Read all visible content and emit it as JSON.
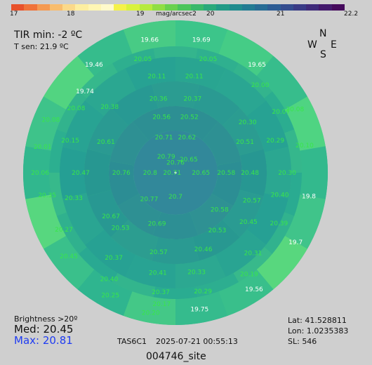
{
  "colorbar": {
    "ticks": [
      "17",
      "18",
      "19",
      "20",
      "21",
      "22.2"
    ],
    "unit": "mag/arcsec2",
    "colors": [
      "#e8522b",
      "#f0733a",
      "#f59a52",
      "#f8bd6e",
      "#fbd98a",
      "#fdeea0",
      "#fff6b4",
      "#fffacb",
      "#f5f24a",
      "#d9f23d",
      "#b6ea3e",
      "#90de44",
      "#6ad14e",
      "#4cc55a",
      "#39b86a",
      "#2aa97a",
      "#219a86",
      "#1f8b8e",
      "#227b93",
      "#276c95",
      "#2d5c94",
      "#334c8f",
      "#393b86",
      "#3f2b7a",
      "#43196c",
      "#450a5c"
    ]
  },
  "tir": {
    "min_label": "TIR min: -2 ºC",
    "tsen_label": "T sen: 21.9 ºC"
  },
  "compass": {
    "n": "N",
    "w": "W",
    "e": "E",
    "s": "S"
  },
  "stats": {
    "brightness_label": "Brightness >20º",
    "med_label": "Med: 20.45",
    "max_label": "Max: 20.81",
    "max_color": "#1f3cf2"
  },
  "device": "TAS6C1",
  "datetime": "2025-07-21   00:55:13",
  "site": "004746_site",
  "location": {
    "lat": "Lat: 41.528811",
    "lon": "Lon: 1.0235383",
    "sl": "SL:  546"
  },
  "sky_labels": [
    {
      "text": "19.66",
      "az": -11,
      "zen": 80
    },
    {
      "text": "19.69",
      "az": 11,
      "zen": 80
    },
    {
      "text": "19.46",
      "az": -37,
      "zen": 80
    },
    {
      "text": "19.65",
      "az": 37,
      "zen": 80
    },
    {
      "text": "19.74",
      "az": -48,
      "zen": 72
    },
    {
      "text": "20.05",
      "az": -16,
      "zen": 70
    },
    {
      "text": "20.05",
      "az": 16,
      "zen": 70
    },
    {
      "text": "20.11",
      "az": -11,
      "zen": 58
    },
    {
      "text": "20.11",
      "az": 11,
      "zen": 58
    },
    {
      "text": "20.00",
      "az": 44,
      "zen": 72
    },
    {
      "text": "20.08",
      "az": 62,
      "zen": 80
    },
    {
      "text": "20.36",
      "az": -13,
      "zen": 45
    },
    {
      "text": "20.37",
      "az": 13,
      "zen": 45
    },
    {
      "text": "20.56",
      "az": -14,
      "zen": 34
    },
    {
      "text": "20.52",
      "az": 14,
      "zen": 34
    },
    {
      "text": "20.71",
      "az": -18,
      "zen": 22
    },
    {
      "text": "20.62",
      "az": 18,
      "zen": 22
    },
    {
      "text": "20.79",
      "az": -30,
      "zen": 11
    },
    {
      "text": "20.65",
      "az": 45,
      "zen": 11
    },
    {
      "text": "20.76",
      "az": 0,
      "zen": 6
    },
    {
      "text": "20.08",
      "az": -67,
      "zen": 80
    },
    {
      "text": "20.08",
      "az": -57,
      "zen": 70
    },
    {
      "text": "20.38",
      "az": -45,
      "zen": 55
    },
    {
      "text": "20.30",
      "az": 55,
      "zen": 52
    },
    {
      "text": "20.07",
      "az": 60,
      "zen": 72
    },
    {
      "text": "20.61",
      "az": -66,
      "zen": 45
    },
    {
      "text": "20.51",
      "az": 66,
      "zen": 45
    },
    {
      "text": "20.29",
      "az": 72,
      "zen": 62
    },
    {
      "text": "20.10",
      "az": 78,
      "zen": 78
    },
    {
      "text": "20.01",
      "az": -79,
      "zen": 80
    },
    {
      "text": "20.15",
      "az": -73,
      "zen": 65
    },
    {
      "text": "20.06",
      "az": -90,
      "zen": 80
    },
    {
      "text": "20.47",
      "az": -90,
      "zen": 56
    },
    {
      "text": "20.76",
      "az": -90,
      "zen": 32
    },
    {
      "text": "20.8",
      "az": -90,
      "zen": 15
    },
    {
      "text": "20.71",
      "az": -90,
      "zen": 2
    },
    {
      "text": "20.65",
      "az": 90,
      "zen": 15
    },
    {
      "text": "20.58",
      "az": 90,
      "zen": 30
    },
    {
      "text": "20.48",
      "az": 90,
      "zen": 44
    },
    {
      "text": "20.30",
      "az": 90,
      "zen": 66
    },
    {
      "text": "20.35",
      "az": -100,
      "zen": 77
    },
    {
      "text": "20.33",
      "az": -104,
      "zen": 62
    },
    {
      "text": "20.67",
      "az": -124,
      "zen": 46
    },
    {
      "text": "20.77",
      "az": -135,
      "zen": 22
    },
    {
      "text": "20.7",
      "az": 180,
      "zen": 14
    },
    {
      "text": "20.58",
      "az": 130,
      "zen": 34
    },
    {
      "text": "20.57",
      "az": 110,
      "zen": 48
    },
    {
      "text": "20.40",
      "az": 102,
      "zen": 63
    },
    {
      "text": "19.8",
      "az": 100,
      "zen": 80
    },
    {
      "text": "20.27",
      "az": -117,
      "zen": 74
    },
    {
      "text": "20.53",
      "az": -135,
      "zen": 46
    },
    {
      "text": "20.69",
      "az": -160,
      "zen": 32
    },
    {
      "text": "20.53",
      "az": 144,
      "zen": 42
    },
    {
      "text": "20.45",
      "az": 124,
      "zen": 52
    },
    {
      "text": "20.39",
      "az": 116,
      "zen": 68
    },
    {
      "text": "20.45",
      "az": -128,
      "zen": 80
    },
    {
      "text": "20.37",
      "az": -144,
      "zen": 62
    },
    {
      "text": "20.57",
      "az": -168,
      "zen": 48
    },
    {
      "text": "20.46",
      "az": 160,
      "zen": 48
    },
    {
      "text": "20.31",
      "az": 136,
      "zen": 66
    },
    {
      "text": "19.7",
      "az": 120,
      "zen": 82
    },
    {
      "text": "20.40",
      "az": -148,
      "zen": 74
    },
    {
      "text": "20.41",
      "az": -170,
      "zen": 60
    },
    {
      "text": "20.33",
      "az": 168,
      "zen": 60
    },
    {
      "text": "20.19",
      "az": 144,
      "zen": 74
    },
    {
      "text": "20.25",
      "az": -152,
      "zen": 82
    },
    {
      "text": "20.37",
      "az": -173,
      "zen": 71
    },
    {
      "text": "20.29",
      "az": 167,
      "zen": 72
    },
    {
      "text": "19.56",
      "az": 146,
      "zen": 83
    },
    {
      "text": "20.20",
      "az": -170,
      "zen": 84
    },
    {
      "text": "20.17",
      "az": -174,
      "zen": 78
    },
    {
      "text": "19.75",
      "az": 170,
      "zen": 82
    }
  ]
}
